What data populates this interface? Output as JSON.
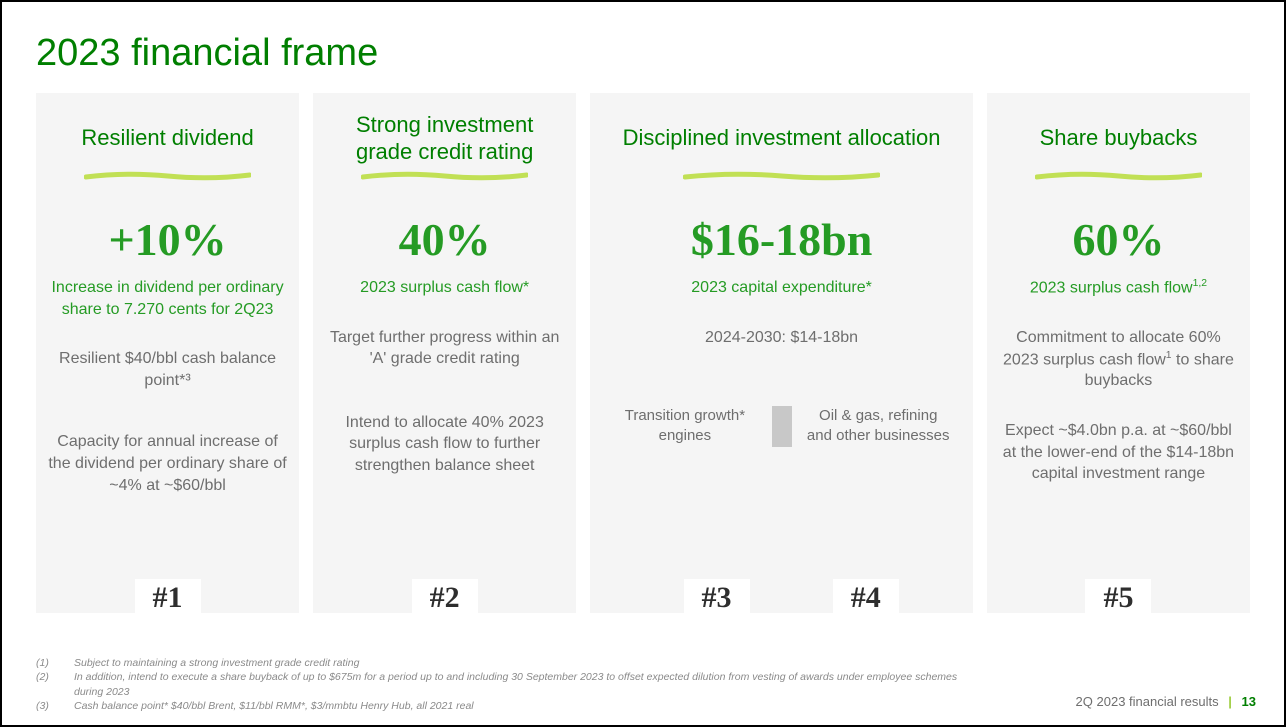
{
  "colors": {
    "title_green": "#007f00",
    "headline_green": "#259b24",
    "underline_yellowgreen": "#c1e055",
    "card_bg": "#f5f5f5",
    "body_grey": "#6e6e6e",
    "footnote_grey": "#8a8a8a",
    "page_border": "#000000"
  },
  "title": "2023 financial frame",
  "cards": [
    {
      "heading": "Resilient dividend",
      "headline": "+10%",
      "sub": "Increase in dividend per ordinary share to 7.270 cents for 2Q23",
      "grey1": "Resilient $40/bbl cash balance point*³",
      "grey2": "Capacity for annual increase of the dividend per ordinary share of ~4% at ~$60/bbl",
      "priority": "#1"
    },
    {
      "heading": "Strong investment grade credit rating",
      "headline": "40%",
      "sub": "2023 surplus cash flow*",
      "grey1": "Target further progress within an 'A' grade credit rating",
      "grey2": "Intend to allocate 40% 2023 surplus cash flow to further strengthen balance sheet",
      "priority": "#2"
    },
    {
      "heading": "Disciplined investment allocation",
      "headline": "$16-18bn",
      "sub": "2023 capital expenditure*",
      "grey1": "2024-2030: $14-18bn",
      "split_left": "Transition growth* engines",
      "split_right": "Oil & gas, refining and other businesses",
      "priority": "#3",
      "priority2": "#4"
    },
    {
      "heading": "Share buybacks",
      "headline": "60%",
      "sub_html": "2023 surplus cash flow<sup>1,2</sup>",
      "grey1_html": "Commitment to allocate 60% 2023 surplus cash flow<sup>1</sup> to share buybacks",
      "grey2": "Expect ~$4.0bn p.a. at ~$60/bbl at the lower-end of the $14-18bn capital investment range",
      "priority": "#5"
    }
  ],
  "footnotes": [
    {
      "num": "(1)",
      "text": "Subject to maintaining a strong investment grade credit rating"
    },
    {
      "num": "(2)",
      "text": "In addition, intend to execute a share buyback of up to $675m for a period up to and including 30 September 2023 to offset expected dilution from vesting of awards under employee schemes during 2023"
    },
    {
      "num": "(3)",
      "text": "Cash balance point* $40/bbl Brent, $11/bbl RMM*, $3/mmbtu Henry Hub, all 2021 real"
    }
  ],
  "pagefoot": {
    "label": "2Q 2023 financial results",
    "page": "13"
  }
}
